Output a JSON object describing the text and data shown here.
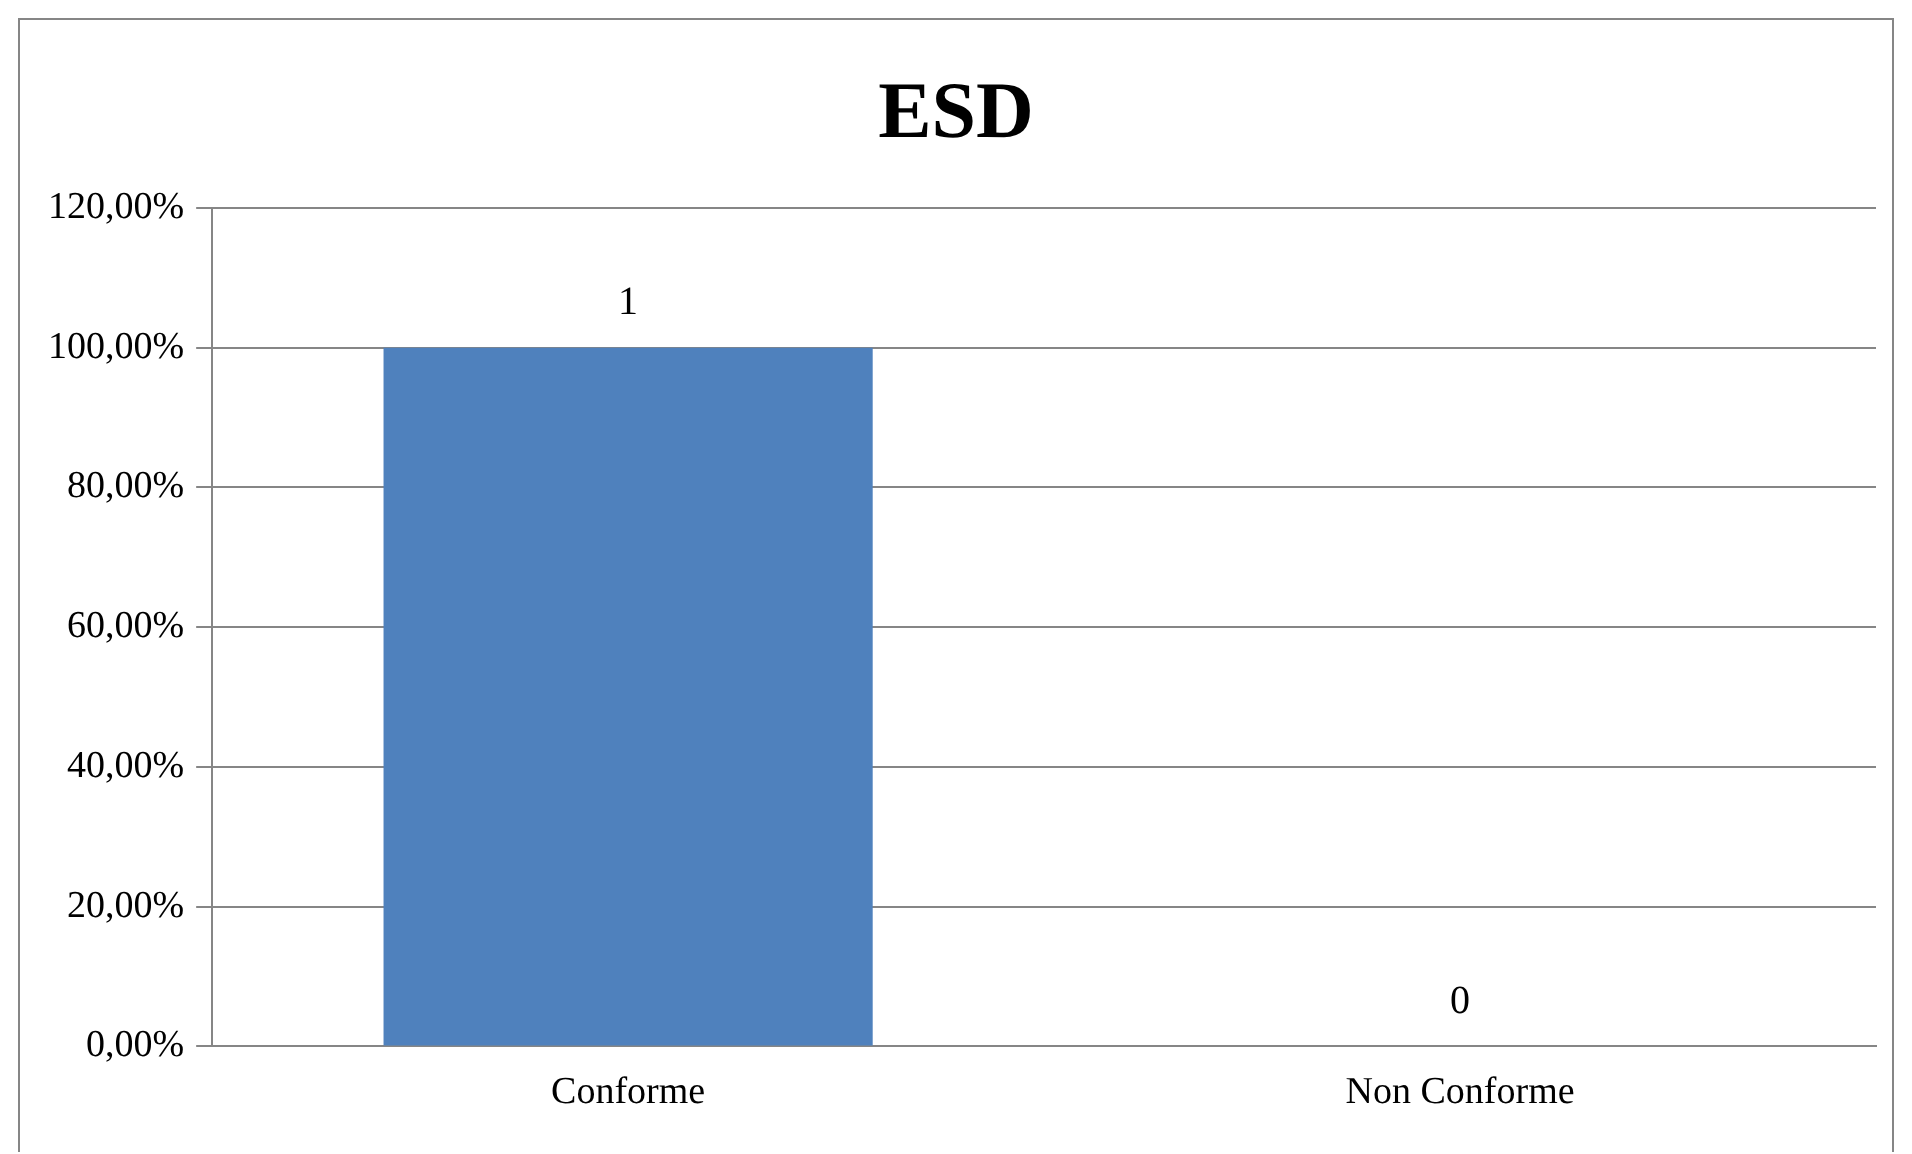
{
  "chart_data": {
    "type": "bar",
    "title": "ESD",
    "categories": [
      "Conforme",
      "Non Conforme"
    ],
    "values": [
      1,
      0
    ],
    "data_labels": true,
    "color": "#4f81bd",
    "ylim": [
      0,
      1.2
    ],
    "yticks": [
      {
        "value": 0,
        "label": "0,00%"
      },
      {
        "value": 0.2,
        "label": "20,00%"
      },
      {
        "value": 0.4,
        "label": "40,00%"
      },
      {
        "value": 0.6,
        "label": "60,00%"
      },
      {
        "value": 0.8,
        "label": "80,00%"
      },
      {
        "value": 1,
        "label": "100,00%"
      },
      {
        "value": 1.2,
        "label": "120,00%"
      }
    ],
    "grid": "y",
    "legend": false
  }
}
